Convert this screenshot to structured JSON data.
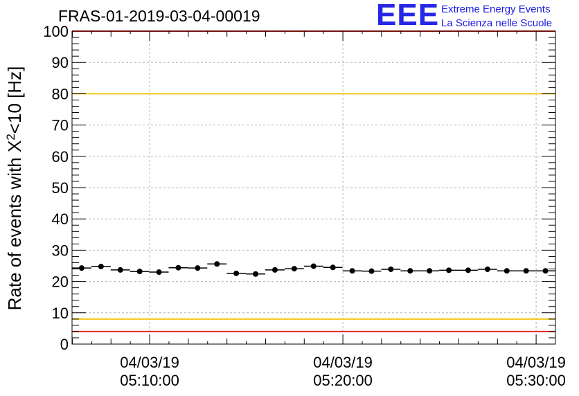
{
  "header": {
    "run_title": "FRAS-01-2019-03-04-00019",
    "logo_mark": "EEE",
    "logo_line1": "Extreme Energy Events",
    "logo_line2": "La Scienza nelle Scuole"
  },
  "colors": {
    "limit_red": "#e8241c",
    "limit_yellow": "#f0c814",
    "marker": "#000000",
    "grid": "#b4b4b4",
    "logo_blue": "#2626e6"
  },
  "chart_data": {
    "type": "scatter",
    "ylabel": "Rate of events with X²<10 [Hz]",
    "ylabel_base": "Rate of events with X",
    "ylabel_sup": "2",
    "ylabel_tail": "<10 [Hz]",
    "ylim": [
      0,
      100
    ],
    "yticks": [
      0,
      10,
      20,
      30,
      40,
      50,
      60,
      70,
      80,
      90,
      100
    ],
    "xlim": [
      "05:05:59",
      "05:31:00"
    ],
    "xticks": [
      {
        "time": "05:10:00",
        "date": "04/03/19"
      },
      {
        "time": "05:20:00",
        "date": "04/03/19"
      },
      {
        "time": "05:30:00",
        "date": "04/03/19"
      }
    ],
    "grid": true,
    "reference_lines": [
      {
        "y": 100,
        "color": "red"
      },
      {
        "y": 80,
        "color": "yellow"
      },
      {
        "y": 8,
        "color": "yellow"
      },
      {
        "y": 4,
        "color": "red"
      }
    ],
    "series": [
      {
        "bin_width_seconds": 60,
        "x": [
          "05:06:29",
          "05:07:29",
          "05:08:29",
          "05:09:29",
          "05:10:29",
          "05:11:29",
          "05:12:29",
          "05:13:29",
          "05:14:29",
          "05:15:29",
          "05:16:29",
          "05:17:29",
          "05:18:29",
          "05:19:29",
          "05:20:29",
          "05:21:29",
          "05:22:29",
          "05:23:29",
          "05:24:29",
          "05:25:29",
          "05:26:29",
          "05:27:29",
          "05:28:29",
          "05:29:29",
          "05:30:29"
        ],
        "y": [
          24.3,
          24.8,
          23.7,
          23.2,
          23.0,
          24.4,
          24.3,
          25.6,
          22.6,
          22.4,
          23.7,
          24.1,
          24.9,
          24.5,
          23.4,
          23.3,
          23.9,
          23.4,
          23.4,
          23.6,
          23.6,
          23.9,
          23.4,
          23.4,
          23.4
        ]
      }
    ]
  }
}
